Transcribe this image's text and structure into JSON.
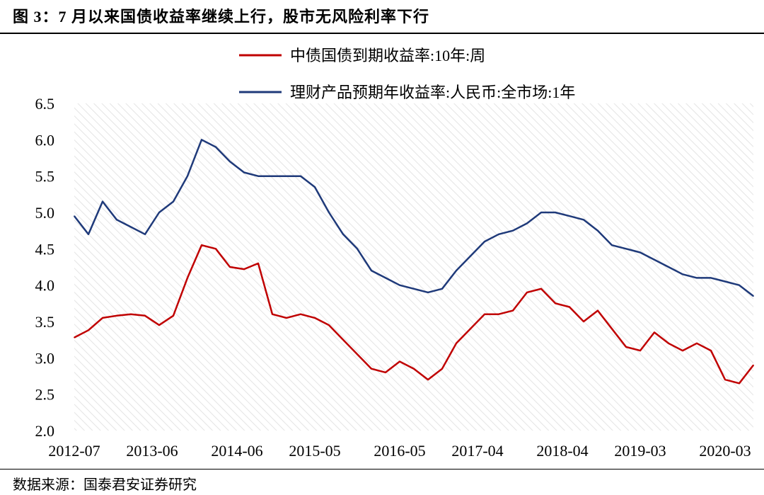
{
  "figure": {
    "title": "图 3：7 月以来国债收益率继续上行，股市无风险利率下行",
    "source": "数据来源：国泰君安证券研究"
  },
  "chart_data": {
    "type": "line",
    "xlabel": "",
    "ylabel": "",
    "x_tick_labels": [
      "2012-07",
      "2013-06",
      "2014-06",
      "2015-05",
      "2016-05",
      "2017-04",
      "2018-04",
      "2019-03",
      "2020-03"
    ],
    "y_tick_labels": [
      "2.0",
      "2.5",
      "3.0",
      "3.5",
      "4.0",
      "4.5",
      "5.0",
      "5.5",
      "6.0",
      "6.5"
    ],
    "ylim": [
      2.0,
      6.5
    ],
    "grid": "diagonal hatched plot background",
    "legend_position": "top",
    "x_domain": [
      "2012-07",
      "2020-07"
    ],
    "series": [
      {
        "name": "中债国债到期收益率:10年:周",
        "color": "#c00000",
        "points": [
          [
            "2012-07",
            3.28
          ],
          [
            "2012-09",
            3.38
          ],
          [
            "2012-11",
            3.55
          ],
          [
            "2013-01",
            3.58
          ],
          [
            "2013-03",
            3.6
          ],
          [
            "2013-05",
            3.58
          ],
          [
            "2013-07",
            3.45
          ],
          [
            "2013-09",
            3.58
          ],
          [
            "2013-11",
            4.1
          ],
          [
            "2014-01",
            4.55
          ],
          [
            "2014-03",
            4.5
          ],
          [
            "2014-05",
            4.25
          ],
          [
            "2014-07",
            4.22
          ],
          [
            "2014-09",
            4.3
          ],
          [
            "2014-11",
            3.6
          ],
          [
            "2015-01",
            3.55
          ],
          [
            "2015-03",
            3.6
          ],
          [
            "2015-05",
            3.55
          ],
          [
            "2015-07",
            3.45
          ],
          [
            "2015-09",
            3.25
          ],
          [
            "2015-11",
            3.05
          ],
          [
            "2016-01",
            2.85
          ],
          [
            "2016-03",
            2.8
          ],
          [
            "2016-05",
            2.95
          ],
          [
            "2016-07",
            2.85
          ],
          [
            "2016-09",
            2.7
          ],
          [
            "2016-11",
            2.85
          ],
          [
            "2017-01",
            3.2
          ],
          [
            "2017-03",
            3.4
          ],
          [
            "2017-05",
            3.6
          ],
          [
            "2017-07",
            3.6
          ],
          [
            "2017-09",
            3.65
          ],
          [
            "2017-11",
            3.9
          ],
          [
            "2018-01",
            3.95
          ],
          [
            "2018-03",
            3.75
          ],
          [
            "2018-05",
            3.7
          ],
          [
            "2018-07",
            3.5
          ],
          [
            "2018-09",
            3.65
          ],
          [
            "2018-11",
            3.4
          ],
          [
            "2019-01",
            3.15
          ],
          [
            "2019-03",
            3.1
          ],
          [
            "2019-05",
            3.35
          ],
          [
            "2019-07",
            3.2
          ],
          [
            "2019-09",
            3.1
          ],
          [
            "2019-11",
            3.2
          ],
          [
            "2020-01",
            3.1
          ],
          [
            "2020-03",
            2.7
          ],
          [
            "2020-05",
            2.65
          ],
          [
            "2020-07",
            2.9
          ]
        ]
      },
      {
        "name": "理财产品预期年收益率:人民币:全市场:1年",
        "color": "#1f3a7a",
        "points": [
          [
            "2012-07",
            4.95
          ],
          [
            "2012-09",
            4.7
          ],
          [
            "2012-11",
            5.15
          ],
          [
            "2013-01",
            4.9
          ],
          [
            "2013-03",
            4.8
          ],
          [
            "2013-05",
            4.7
          ],
          [
            "2013-07",
            5.0
          ],
          [
            "2013-09",
            5.15
          ],
          [
            "2013-11",
            5.5
          ],
          [
            "2014-01",
            6.0
          ],
          [
            "2014-03",
            5.9
          ],
          [
            "2014-05",
            5.7
          ],
          [
            "2014-07",
            5.55
          ],
          [
            "2014-09",
            5.5
          ],
          [
            "2014-11",
            5.5
          ],
          [
            "2015-01",
            5.5
          ],
          [
            "2015-03",
            5.5
          ],
          [
            "2015-05",
            5.35
          ],
          [
            "2015-07",
            5.0
          ],
          [
            "2015-09",
            4.7
          ],
          [
            "2015-11",
            4.5
          ],
          [
            "2016-01",
            4.2
          ],
          [
            "2016-03",
            4.1
          ],
          [
            "2016-05",
            4.0
          ],
          [
            "2016-07",
            3.95
          ],
          [
            "2016-09",
            3.9
          ],
          [
            "2016-11",
            3.95
          ],
          [
            "2017-01",
            4.2
          ],
          [
            "2017-03",
            4.4
          ],
          [
            "2017-05",
            4.6
          ],
          [
            "2017-07",
            4.7
          ],
          [
            "2017-09",
            4.75
          ],
          [
            "2017-11",
            4.85
          ],
          [
            "2018-01",
            5.0
          ],
          [
            "2018-03",
            5.0
          ],
          [
            "2018-05",
            4.95
          ],
          [
            "2018-07",
            4.9
          ],
          [
            "2018-09",
            4.75
          ],
          [
            "2018-11",
            4.55
          ],
          [
            "2019-01",
            4.5
          ],
          [
            "2019-03",
            4.45
          ],
          [
            "2019-05",
            4.35
          ],
          [
            "2019-07",
            4.25
          ],
          [
            "2019-09",
            4.15
          ],
          [
            "2019-11",
            4.1
          ],
          [
            "2020-01",
            4.1
          ],
          [
            "2020-03",
            4.05
          ],
          [
            "2020-05",
            4.0
          ],
          [
            "2020-07",
            3.85
          ]
        ]
      }
    ]
  }
}
